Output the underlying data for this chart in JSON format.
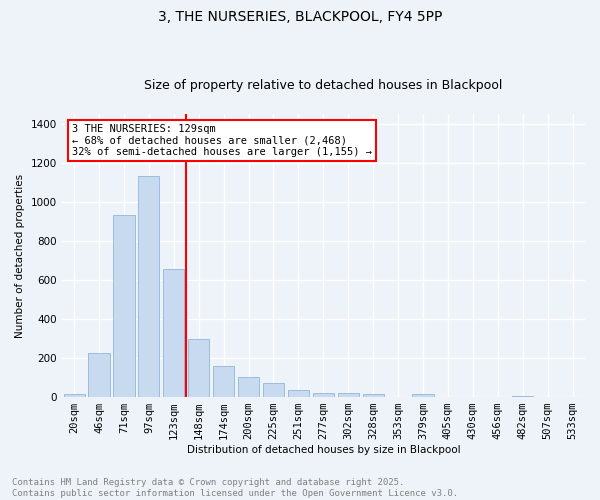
{
  "title": "3, THE NURSERIES, BLACKPOOL, FY4 5PP",
  "subtitle": "Size of property relative to detached houses in Blackpool",
  "xlabel": "Distribution of detached houses by size in Blackpool",
  "ylabel": "Number of detached properties",
  "categories": [
    "20sqm",
    "46sqm",
    "71sqm",
    "97sqm",
    "123sqm",
    "148sqm",
    "174sqm",
    "200sqm",
    "225sqm",
    "251sqm",
    "277sqm",
    "302sqm",
    "328sqm",
    "353sqm",
    "379sqm",
    "405sqm",
    "430sqm",
    "456sqm",
    "482sqm",
    "507sqm",
    "533sqm"
  ],
  "values": [
    15,
    225,
    935,
    1130,
    655,
    295,
    160,
    105,
    70,
    37,
    20,
    20,
    15,
    0,
    15,
    0,
    0,
    0,
    8,
    0,
    0
  ],
  "bar_color": "#c8daf0",
  "bar_edge_color": "#9bbcdc",
  "vline_color": "red",
  "annotation_text": "3 THE NURSERIES: 129sqm\n← 68% of detached houses are smaller (2,468)\n32% of semi-detached houses are larger (1,155) →",
  "annotation_box_color": "white",
  "annotation_box_edge_color": "red",
  "ylim": [
    0,
    1450
  ],
  "yticks": [
    0,
    200,
    400,
    600,
    800,
    1000,
    1200,
    1400
  ],
  "footer": "Contains HM Land Registry data © Crown copyright and database right 2025.\nContains public sector information licensed under the Open Government Licence v3.0.",
  "bg_color": "#eef3fa",
  "plot_bg_color": "#eef3fa",
  "grid_color": "white",
  "title_fontsize": 10,
  "subtitle_fontsize": 9,
  "tick_fontsize": 7.5,
  "footer_fontsize": 6.5,
  "annot_fontsize": 7.5
}
